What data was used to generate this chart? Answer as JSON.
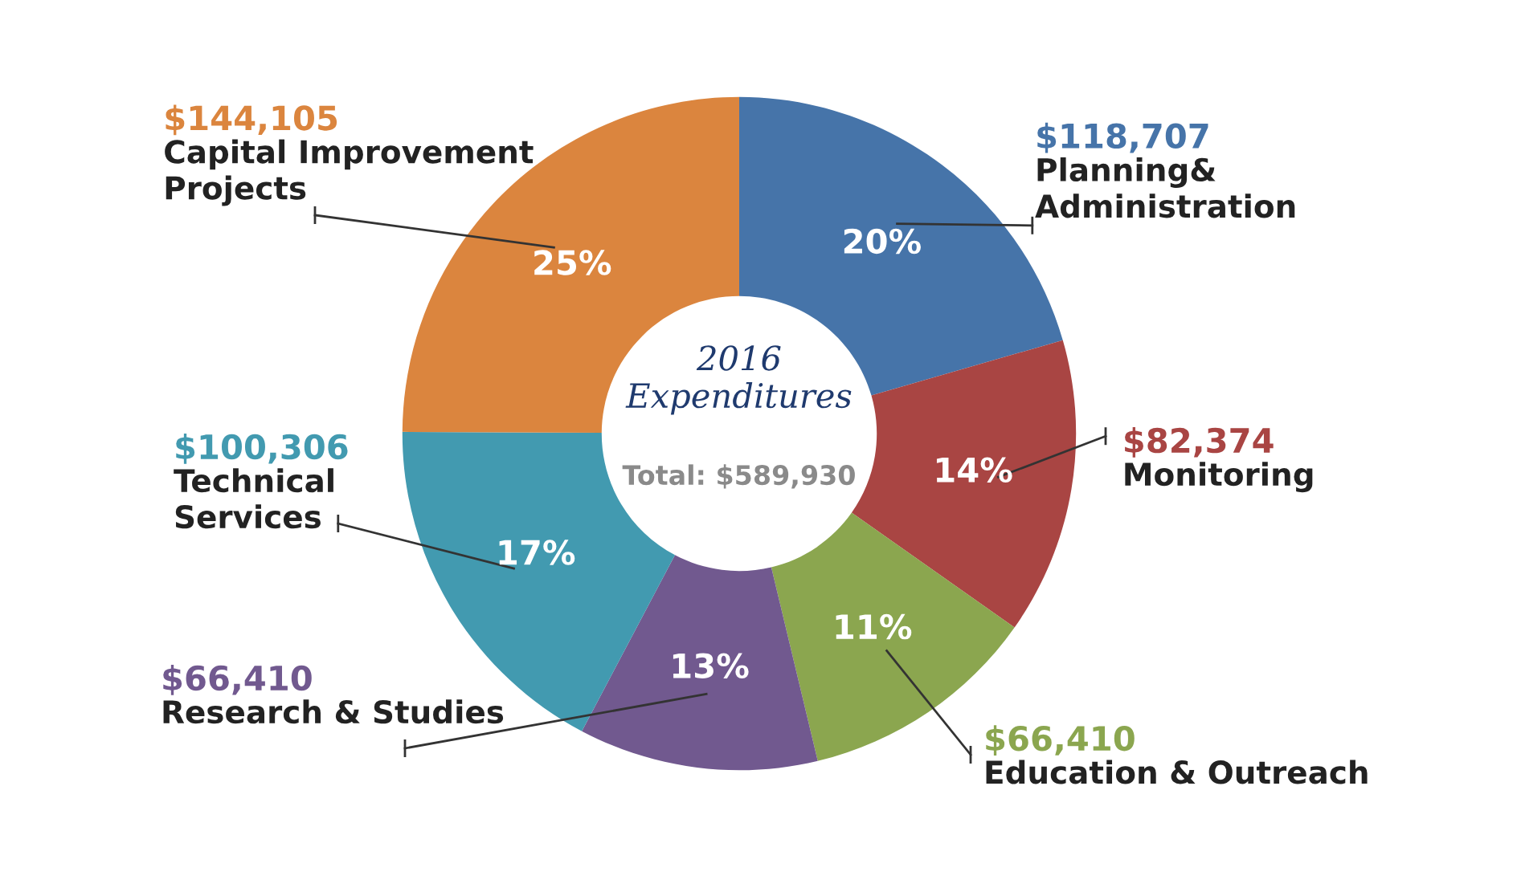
{
  "chart_data": {
    "type": "donut",
    "categories": [
      "Planning&\nAdministration",
      "Monitoring",
      "Education & Outreach",
      "Research & Studies",
      "Technical\nServices",
      "Capital Improvement\nProjects"
    ],
    "values": [
      118707,
      82374,
      66410,
      66410,
      100306,
      144105
    ],
    "colors": [
      "#4674a9",
      "#a94543",
      "#8ba64f",
      "#71598f",
      "#429ab0",
      "#db853e"
    ],
    "value_labels": [
      "$118,707",
      "$82,374",
      "$66,410",
      "$66,410",
      "$100,306",
      "$144,105"
    ],
    "annotations": [
      {
        "text": "20%",
        "x": "Planning&\nAdministration"
      },
      {
        "text": "14%",
        "x": "Monitoring"
      },
      {
        "text": "11%",
        "x": "Education & Outreach"
      },
      {
        "text": "13%",
        "x": "Research & Studies"
      },
      {
        "text": "17%",
        "x": "Technical\nServices"
      },
      {
        "text": "25%",
        "x": "Capital Improvement\nProjects"
      },
      "2016\nExpenditures",
      "Total: $589,930"
    ]
  }
}
